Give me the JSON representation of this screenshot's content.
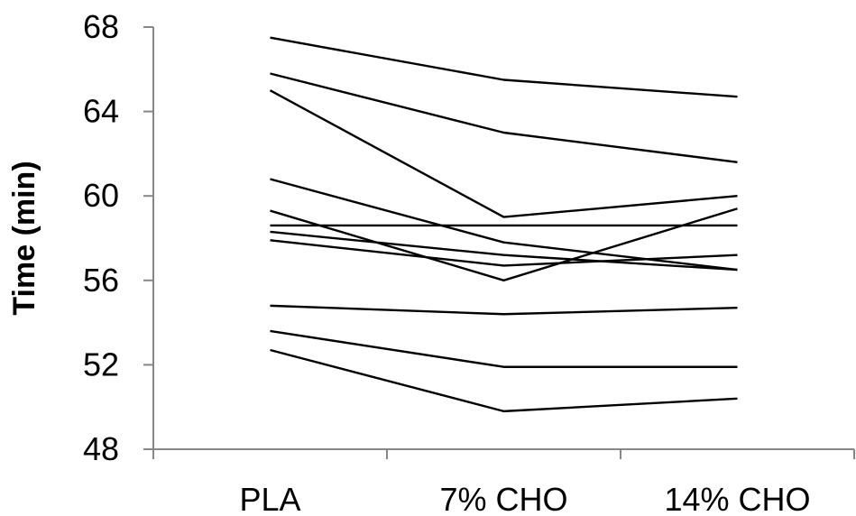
{
  "chart_data": {
    "type": "line",
    "title": "",
    "xlabel": "",
    "ylabel": "Time (min)",
    "categories": [
      "PLA",
      "7% CHO",
      "14% CHO"
    ],
    "yticks": [
      48,
      52,
      56,
      60,
      64,
      68
    ],
    "ylim": [
      48,
      68
    ],
    "grid": false,
    "legend": "none",
    "line_color": "#000000",
    "axis_color": "#878787",
    "series": [
      {
        "values": [
          67.5,
          65.5,
          64.7
        ]
      },
      {
        "values": [
          65.8,
          63.0,
          61.6
        ]
      },
      {
        "values": [
          65.0,
          59.0,
          60.0
        ]
      },
      {
        "values": [
          60.8,
          57.8,
          56.5
        ]
      },
      {
        "values": [
          59.3,
          56.0,
          59.4
        ]
      },
      {
        "values": [
          58.6,
          58.6,
          58.6
        ]
      },
      {
        "values": [
          58.3,
          57.2,
          56.5
        ]
      },
      {
        "values": [
          57.9,
          56.7,
          57.2
        ]
      },
      {
        "values": [
          54.8,
          54.4,
          54.7
        ]
      },
      {
        "values": [
          53.6,
          51.9,
          51.9
        ]
      },
      {
        "values": [
          52.7,
          49.8,
          50.4
        ]
      }
    ]
  }
}
